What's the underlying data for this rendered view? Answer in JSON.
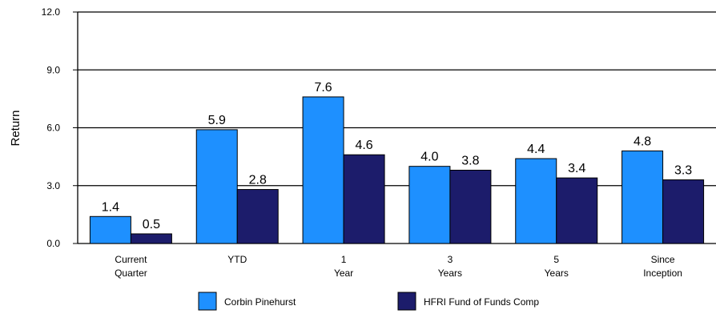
{
  "chart_data": {
    "type": "bar",
    "y_label": "Return",
    "categories": [
      "Current Quarter",
      "YTD",
      "1 Year",
      "3 Years",
      "5 Years",
      "Since Inception"
    ],
    "series": [
      {
        "name": "Corbin Pinehurst",
        "color": "#1e90ff",
        "values": [
          1.4,
          5.9,
          7.6,
          4.0,
          4.4,
          4.8
        ],
        "value_labels": [
          "1.4",
          "5.9",
          "7.6",
          "4.0",
          "4.4",
          "4.8"
        ]
      },
      {
        "name": "HFRI Fund of Funds Comp",
        "color": "#1c1c6b",
        "values": [
          0.5,
          2.8,
          4.6,
          3.8,
          3.4,
          3.3
        ],
        "value_labels": [
          "0.5",
          "2.8",
          "4.6",
          "3.8",
          "3.4",
          "3.3"
        ]
      }
    ],
    "ylim": [
      0,
      12
    ],
    "yticks": [
      {
        "value": 0,
        "label": "0.0"
      },
      {
        "value": 3,
        "label": "3.0"
      },
      {
        "value": 6,
        "label": "6.0"
      },
      {
        "value": 9,
        "label": "9.0"
      },
      {
        "value": 12,
        "label": "12.0"
      }
    ],
    "grid": true
  }
}
